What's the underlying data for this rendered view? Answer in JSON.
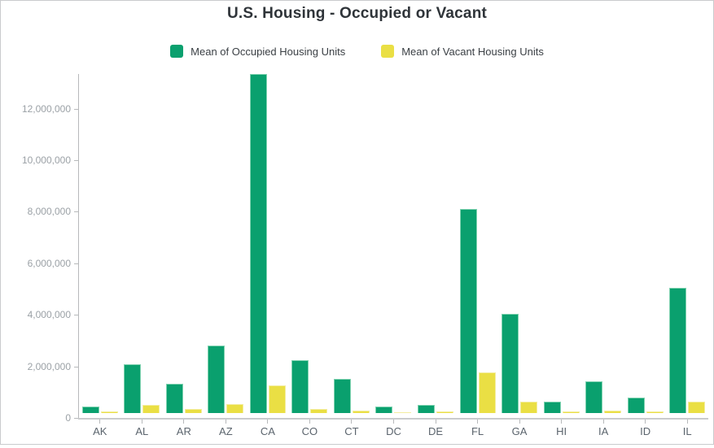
{
  "chart_data": {
    "type": "bar",
    "title": "U.S. Housing - Occupied or Vacant",
    "categories": [
      "AK",
      "AL",
      "AR",
      "AZ",
      "CA",
      "CO",
      "CT",
      "DC",
      "DE",
      "FL",
      "GA",
      "HI",
      "IA",
      "ID",
      "IL"
    ],
    "series": [
      {
        "name": "Mean of Occupied Housing Units",
        "color": "#0aa06e",
        "border_color": "#7fd2b0",
        "values": [
          250000,
          1880000,
          1130000,
          2610000,
          13170000,
          2060000,
          1340000,
          260000,
          310000,
          7930000,
          3840000,
          430000,
          1240000,
          590000,
          4870000
        ]
      },
      {
        "name": "Mean of Vacant Housing Units",
        "color": "#eadf44",
        "border_color": "#f3eda0",
        "values": [
          60000,
          330000,
          160000,
          360000,
          1060000,
          170000,
          100000,
          25000,
          70000,
          1580000,
          450000,
          65000,
          110000,
          60000,
          430000
        ]
      }
    ],
    "xlabel": "",
    "ylabel": "",
    "ylim": [
      0,
      13500000
    ],
    "yticks": [
      0,
      2000000,
      4000000,
      6000000,
      8000000,
      10000000,
      12000000
    ],
    "grid": false,
    "legend_position": "top",
    "axis_color": "#b7b9bb",
    "ytick_label_color": "#9ba1a6",
    "xtick_label_color": "#5b646d",
    "title_color": "#2f3439"
  }
}
